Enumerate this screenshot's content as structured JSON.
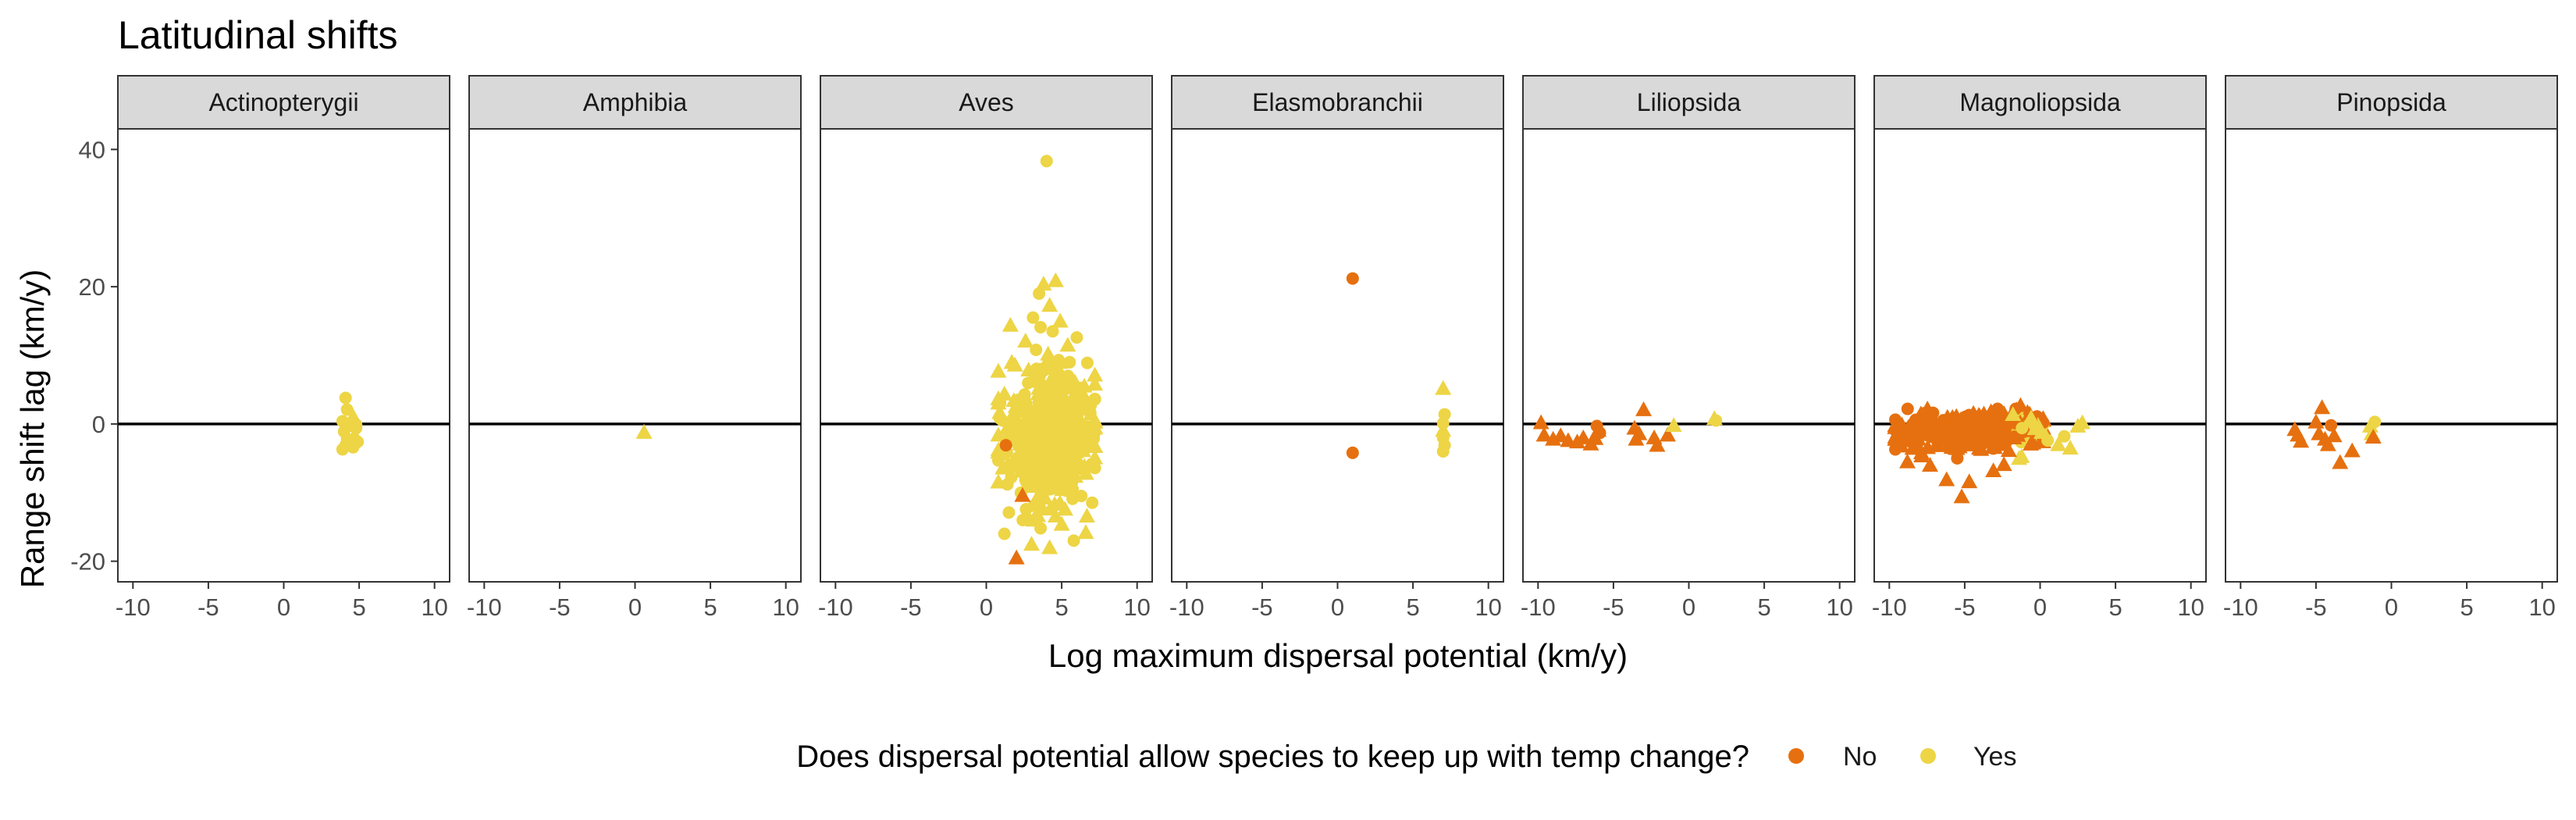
{
  "chart_data": {
    "type": "scatter",
    "title": "Latitudinal shifts",
    "xlabel": "Log maximum dispersal potential (km/y)",
    "ylabel": "Range shift lag (km/y)",
    "xlim": [
      -11,
      11
    ],
    "ylim": [
      -23,
      43
    ],
    "x_ticks": [
      -10,
      -5,
      0,
      5,
      10
    ],
    "y_ticks": [
      -20,
      0,
      20,
      40
    ],
    "grid": false,
    "reference_line_y": 0,
    "legend": {
      "title": "Does dispersal potential allow species to keep up with temp change?",
      "placement": "bottom",
      "entries": [
        {
          "label": "No",
          "color": "#E6700F"
        },
        {
          "label": "Yes",
          "color": "#EDD545"
        }
      ]
    },
    "colors": {
      "No": "#E6700F",
      "Yes": "#EDD545",
      "strip_bg": "#D9D9D9"
    },
    "shapes": [
      "circle",
      "triangle"
    ],
    "panels": [
      {
        "name": "Actinopterygii",
        "points": [
          [
            4.1,
            3.8,
            "Yes",
            "circle"
          ],
          [
            4.2,
            2.1,
            "Yes",
            "circle"
          ],
          [
            4.6,
            1.1,
            "Yes",
            "triangle"
          ],
          [
            3.9,
            0.4,
            "Yes",
            "circle"
          ],
          [
            4.3,
            -0.2,
            "Yes",
            "triangle"
          ],
          [
            4.8,
            -0.6,
            "Yes",
            "circle"
          ],
          [
            4.0,
            -1.1,
            "Yes",
            "circle"
          ],
          [
            4.7,
            -1.6,
            "Yes",
            "triangle"
          ],
          [
            4.2,
            -2.2,
            "Yes",
            "circle"
          ],
          [
            4.9,
            -2.6,
            "Yes",
            "circle"
          ],
          [
            4.1,
            -3.1,
            "Yes",
            "circle"
          ],
          [
            4.6,
            -3.4,
            "Yes",
            "circle"
          ],
          [
            3.9,
            -3.7,
            "Yes",
            "circle"
          ],
          [
            4.8,
            -0.1,
            "Yes",
            "circle"
          ]
        ]
      },
      {
        "name": "Amphibia",
        "points": [
          [
            0.6,
            -1.2,
            "Yes",
            "triangle"
          ]
        ]
      },
      {
        "name": "Aves",
        "points": [
          [
            4.0,
            38.3,
            "Yes",
            "circle"
          ],
          [
            3.8,
            20.4,
            "Yes",
            "triangle"
          ],
          [
            4.6,
            20.9,
            "Yes",
            "triangle"
          ],
          [
            3.5,
            19.0,
            "Yes",
            "circle"
          ],
          [
            4.2,
            17.3,
            "Yes",
            "triangle"
          ],
          [
            3.1,
            15.5,
            "Yes",
            "circle"
          ],
          [
            4.9,
            15.0,
            "Yes",
            "triangle"
          ],
          [
            3.6,
            14.1,
            "Yes",
            "circle"
          ],
          [
            1.6,
            14.4,
            "Yes",
            "triangle"
          ],
          [
            4.4,
            13.5,
            "Yes",
            "circle"
          ],
          [
            6.0,
            12.6,
            "Yes",
            "circle"
          ],
          [
            2.6,
            12.1,
            "Yes",
            "triangle"
          ],
          [
            5.4,
            11.5,
            "Yes",
            "triangle"
          ],
          [
            3.3,
            10.8,
            "Yes",
            "circle"
          ],
          [
            4.1,
            10.2,
            "Yes",
            "triangle"
          ],
          [
            6.7,
            8.9,
            "Yes",
            "circle"
          ],
          [
            1.9,
            8.6,
            "Yes",
            "triangle"
          ],
          [
            4.8,
            9.3,
            "Yes",
            "circle"
          ],
          [
            3.9,
            8.1,
            "Yes",
            "triangle"
          ],
          [
            2.4,
            -10.4,
            "No",
            "triangle"
          ],
          [
            2.0,
            -19.5,
            "No",
            "triangle"
          ],
          [
            1.3,
            -3.1,
            "No",
            "circle"
          ],
          [
            1.2,
            -16.0,
            "Yes",
            "circle"
          ],
          [
            1.5,
            -12.9,
            "Yes",
            "circle"
          ],
          [
            3.0,
            -17.5,
            "Yes",
            "triangle"
          ],
          [
            4.2,
            -18.0,
            "Yes",
            "triangle"
          ],
          [
            5.8,
            -17.0,
            "Yes",
            "circle"
          ],
          [
            6.6,
            -15.8,
            "Yes",
            "triangle"
          ],
          [
            3.6,
            -15.2,
            "Yes",
            "circle"
          ],
          [
            5.0,
            -14.6,
            "Yes",
            "triangle"
          ],
          [
            2.7,
            -13.8,
            "Yes",
            "circle"
          ],
          [
            4.6,
            -13.4,
            "Yes",
            "triangle"
          ],
          [
            7.2,
            3.6,
            "Yes",
            "circle"
          ],
          [
            7.0,
            -1.4,
            "Yes",
            "triangle"
          ],
          [
            6.9,
            1.6,
            "Yes",
            "circle"
          ],
          [
            0.9,
            0.8,
            "Yes",
            "circle"
          ],
          [
            1.1,
            -6.4,
            "Yes",
            "triangle"
          ],
          [
            1.4,
            -8.8,
            "Yes",
            "circle"
          ],
          [
            6.3,
            -10.5,
            "Yes",
            "circle"
          ],
          [
            5.9,
            -7.6,
            "Yes",
            "triangle"
          ]
        ],
        "cloud": {
          "x_center": 4.0,
          "x_spread": 1.5,
          "y_center": -1.5,
          "y_spread": 4.5,
          "count": 520,
          "x_min": 0.8,
          "x_max": 7.2,
          "y_min": -14,
          "y_max": 9
        }
      },
      {
        "name": "Elasmobranchii",
        "points": [
          [
            1.0,
            21.2,
            "No",
            "circle"
          ],
          [
            1.0,
            -4.2,
            "No",
            "circle"
          ],
          [
            7.0,
            5.2,
            "Yes",
            "triangle"
          ],
          [
            7.1,
            1.4,
            "Yes",
            "circle"
          ],
          [
            7.0,
            0.1,
            "Yes",
            "circle"
          ],
          [
            7.0,
            -0.9,
            "Yes",
            "triangle"
          ],
          [
            7.0,
            -2.0,
            "Yes",
            "circle"
          ],
          [
            7.1,
            -3.1,
            "Yes",
            "circle"
          ],
          [
            7.0,
            -4.0,
            "Yes",
            "circle"
          ]
        ]
      },
      {
        "name": "Liliopsida",
        "points": [
          [
            -9.8,
            0.2,
            "No",
            "triangle"
          ],
          [
            -9.6,
            -1.6,
            "No",
            "triangle"
          ],
          [
            -9.0,
            -2.2,
            "No",
            "triangle"
          ],
          [
            -8.5,
            -1.7,
            "No",
            "triangle"
          ],
          [
            -8.0,
            -2.4,
            "No",
            "triangle"
          ],
          [
            -7.4,
            -2.6,
            "No",
            "triangle"
          ],
          [
            -7.0,
            -2.0,
            "No",
            "triangle"
          ],
          [
            -6.5,
            -2.9,
            "No",
            "triangle"
          ],
          [
            -6.1,
            -0.3,
            "No",
            "circle"
          ],
          [
            -6.0,
            -0.9,
            "No",
            "triangle"
          ],
          [
            -5.9,
            -1.3,
            "No",
            "circle"
          ],
          [
            -6.2,
            -2.1,
            "No",
            "triangle"
          ],
          [
            -3.0,
            2.1,
            "No",
            "triangle"
          ],
          [
            -3.6,
            -0.6,
            "No",
            "triangle"
          ],
          [
            -3.3,
            -1.4,
            "No",
            "triangle"
          ],
          [
            -3.5,
            -2.2,
            "No",
            "triangle"
          ],
          [
            -2.3,
            -2.0,
            "No",
            "triangle"
          ],
          [
            -2.1,
            -3.1,
            "No",
            "triangle"
          ],
          [
            -1.4,
            -1.6,
            "No",
            "triangle"
          ],
          [
            -1.0,
            -0.2,
            "Yes",
            "triangle"
          ],
          [
            1.7,
            0.8,
            "Yes",
            "triangle"
          ],
          [
            1.8,
            0.5,
            "Yes",
            "circle"
          ]
        ]
      },
      {
        "name": "Magnoliopsida",
        "points": [
          [
            -1.3,
            2.7,
            "No",
            "triangle"
          ],
          [
            -5.2,
            -10.6,
            "No",
            "triangle"
          ],
          [
            -6.2,
            -8.1,
            "No",
            "triangle"
          ],
          [
            -4.7,
            -8.4,
            "No",
            "triangle"
          ],
          [
            -7.3,
            -6.0,
            "No",
            "triangle"
          ],
          [
            -3.1,
            -6.8,
            "No",
            "triangle"
          ],
          [
            -8.8,
            -5.5,
            "No",
            "triangle"
          ],
          [
            -2.4,
            -5.9,
            "No",
            "triangle"
          ],
          [
            -9.4,
            -1.0,
            "No",
            "triangle"
          ],
          [
            -9.2,
            -3.2,
            "No",
            "triangle"
          ],
          [
            1.2,
            -3.0,
            "Yes",
            "triangle"
          ],
          [
            2.0,
            -3.5,
            "Yes",
            "triangle"
          ],
          [
            0.5,
            -2.4,
            "Yes",
            "circle"
          ],
          [
            2.5,
            -0.3,
            "Yes",
            "triangle"
          ],
          [
            -0.6,
            0.9,
            "Yes",
            "triangle"
          ],
          [
            -1.8,
            1.4,
            "Yes",
            "triangle"
          ],
          [
            1.6,
            -1.8,
            "Yes",
            "circle"
          ],
          [
            0.1,
            -1.2,
            "Yes",
            "triangle"
          ],
          [
            2.8,
            0.2,
            "Yes",
            "triangle"
          ],
          [
            -1.2,
            -0.6,
            "Yes",
            "circle"
          ]
        ],
        "cloud": {
          "x_center": -5.0,
          "x_spread": 2.6,
          "y_center": -1.0,
          "y_spread": 1.5,
          "count": 300,
          "x_min": -9.6,
          "x_max": 0.2,
          "y_min": -5,
          "y_max": 2.2
        }
      },
      {
        "name": "Pinopsida",
        "points": [
          [
            -6.4,
            -0.8,
            "No",
            "triangle"
          ],
          [
            -6.2,
            -1.6,
            "No",
            "triangle"
          ],
          [
            -6.0,
            -2.5,
            "No",
            "triangle"
          ],
          [
            -5.0,
            0.3,
            "No",
            "triangle"
          ],
          [
            -4.8,
            -1.4,
            "No",
            "triangle"
          ],
          [
            -4.6,
            2.4,
            "No",
            "triangle"
          ],
          [
            -4.4,
            -2.2,
            "No",
            "triangle"
          ],
          [
            -4.2,
            -3.0,
            "No",
            "triangle"
          ],
          [
            -3.8,
            -1.7,
            "No",
            "triangle"
          ],
          [
            -3.4,
            -5.6,
            "No",
            "triangle"
          ],
          [
            -2.6,
            -3.9,
            "No",
            "triangle"
          ],
          [
            -4.0,
            -0.2,
            "No",
            "circle"
          ],
          [
            -1.4,
            -0.3,
            "Yes",
            "triangle"
          ],
          [
            -1.3,
            -1.4,
            "Yes",
            "triangle"
          ],
          [
            -1.1,
            0.3,
            "Yes",
            "circle"
          ],
          [
            -1.2,
            -1.9,
            "No",
            "triangle"
          ]
        ]
      }
    ]
  }
}
